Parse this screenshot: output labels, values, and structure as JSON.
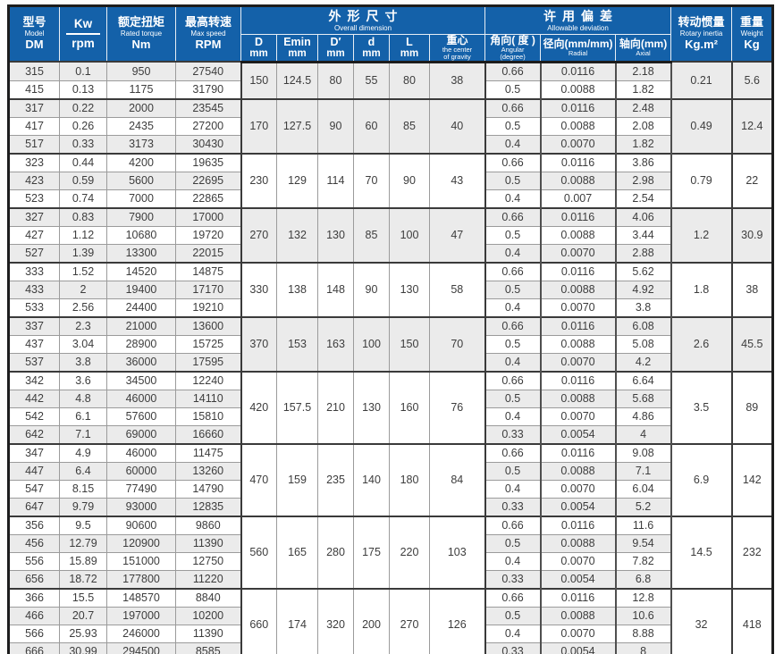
{
  "header": {
    "model": {
      "zh": "型号",
      "en": "Model",
      "code": "DM"
    },
    "power": {
      "top": "Kw",
      "bottom": "rpm"
    },
    "torque": {
      "zh": "额定扭矩",
      "en": "Rated torque",
      "unit": "Nm"
    },
    "speed": {
      "zh": "最高转速",
      "en": "Max speed",
      "unit": "RPM"
    },
    "dims_group": {
      "zh": "外形尺寸",
      "en": "Overall dimension"
    },
    "dims_cols": [
      {
        "label": "D",
        "unit": "mm"
      },
      {
        "label": "Emin",
        "unit": "mm"
      },
      {
        "label": "D′",
        "unit": "mm"
      },
      {
        "label": "d",
        "unit": "mm"
      },
      {
        "label": "L",
        "unit": "mm"
      },
      {
        "label": "重心",
        "sub1": "the center",
        "sub2": "of gravity"
      }
    ],
    "dev_group": {
      "zh": "许用偏差",
      "en": "Allowable deviation"
    },
    "dev_cols": [
      {
        "label": "角向( 度 )",
        "sub1": "Angular",
        "sub2": "(degree)"
      },
      {
        "label": "径向(mm/mm)",
        "sub1": "Radial"
      },
      {
        "label": "轴向(mm)",
        "sub1": "Axial"
      }
    ],
    "inertia": {
      "zh": "转动惯量",
      "en": "Rotary inertia",
      "unit": "Kg.m²"
    },
    "weight": {
      "zh": "重量",
      "en": "Weight",
      "unit": "Kg"
    }
  },
  "colors": {
    "header_blue": "#1461a9",
    "stripe_gray": "#ebebeb",
    "frame_dark": "#1c1c1c"
  },
  "groups": [
    {
      "dims": [
        "150",
        "124.5",
        "80",
        "55",
        "80",
        "38"
      ],
      "inertia": "0.21",
      "weight": "5.6",
      "rows": [
        {
          "model": "315",
          "kw": "0.1",
          "torque": "950",
          "speed": "27540",
          "angular": "0.66",
          "radial": "0.0116",
          "axial": "2.18"
        },
        {
          "model": "415",
          "kw": "0.13",
          "torque": "1175",
          "speed": "31790",
          "angular": "0.5",
          "radial": "0.0088",
          "axial": "1.82"
        }
      ]
    },
    {
      "dims": [
        "170",
        "127.5",
        "90",
        "60",
        "85",
        "40"
      ],
      "inertia": "0.49",
      "weight": "12.4",
      "rows": [
        {
          "model": "317",
          "kw": "0.22",
          "torque": "2000",
          "speed": "23545",
          "angular": "0.66",
          "radial": "0.0116",
          "axial": "2.48"
        },
        {
          "model": "417",
          "kw": "0.26",
          "torque": "2435",
          "speed": "27200",
          "angular": "0.5",
          "radial": "0.0088",
          "axial": "2.08"
        },
        {
          "model": "517",
          "kw": "0.33",
          "torque": "3173",
          "speed": "30430",
          "angular": "0.4",
          "radial": "0.0070",
          "axial": "1.82"
        }
      ]
    },
    {
      "dims": [
        "230",
        "129",
        "114",
        "70",
        "90",
        "43"
      ],
      "inertia": "0.79",
      "weight": "22",
      "rows": [
        {
          "model": "323",
          "kw": "0.44",
          "torque": "4200",
          "speed": "19635",
          "angular": "0.66",
          "radial": "0.0116",
          "axial": "3.86"
        },
        {
          "model": "423",
          "kw": "0.59",
          "torque": "5600",
          "speed": "22695",
          "angular": "0.5",
          "radial": "0.0088",
          "axial": "2.98"
        },
        {
          "model": "523",
          "kw": "0.74",
          "torque": "7000",
          "speed": "22865",
          "angular": "0.4",
          "radial": "0.007",
          "axial": "2.54"
        }
      ]
    },
    {
      "dims": [
        "270",
        "132",
        "130",
        "85",
        "100",
        "47"
      ],
      "inertia": "1.2",
      "weight": "30.9",
      "rows": [
        {
          "model": "327",
          "kw": "0.83",
          "torque": "7900",
          "speed": "17000",
          "angular": "0.66",
          "radial": "0.0116",
          "axial": "4.06"
        },
        {
          "model": "427",
          "kw": "1.12",
          "torque": "10680",
          "speed": "19720",
          "angular": "0.5",
          "radial": "0.0088",
          "axial": "3.44"
        },
        {
          "model": "527",
          "kw": "1.39",
          "torque": "13300",
          "speed": "22015",
          "angular": "0.4",
          "radial": "0.0070",
          "axial": "2.88"
        }
      ]
    },
    {
      "dims": [
        "330",
        "138",
        "148",
        "90",
        "130",
        "58"
      ],
      "inertia": "1.8",
      "weight": "38",
      "rows": [
        {
          "model": "333",
          "kw": "1.52",
          "torque": "14520",
          "speed": "14875",
          "angular": "0.66",
          "radial": "0.0116",
          "axial": "5.62"
        },
        {
          "model": "433",
          "kw": "2",
          "torque": "19400",
          "speed": "17170",
          "angular": "0.5",
          "radial": "0.0088",
          "axial": "4.92"
        },
        {
          "model": "533",
          "kw": "2.56",
          "torque": "24400",
          "speed": "19210",
          "angular": "0.4",
          "radial": "0.0070",
          "axial": "3.8"
        }
      ]
    },
    {
      "dims": [
        "370",
        "153",
        "163",
        "100",
        "150",
        "70"
      ],
      "inertia": "2.6",
      "weight": "45.5",
      "rows": [
        {
          "model": "337",
          "kw": "2.3",
          "torque": "21000",
          "speed": "13600",
          "angular": "0.66",
          "radial": "0.0116",
          "axial": "6.08"
        },
        {
          "model": "437",
          "kw": "3.04",
          "torque": "28900",
          "speed": "15725",
          "angular": "0.5",
          "radial": "0.0088",
          "axial": "5.08"
        },
        {
          "model": "537",
          "kw": "3.8",
          "torque": "36000",
          "speed": "17595",
          "angular": "0.4",
          "radial": "0.0070",
          "axial": "4.2"
        }
      ]
    },
    {
      "dims": [
        "420",
        "157.5",
        "210",
        "130",
        "160",
        "76"
      ],
      "inertia": "3.5",
      "weight": "89",
      "rows": [
        {
          "model": "342",
          "kw": "3.6",
          "torque": "34500",
          "speed": "12240",
          "angular": "0.66",
          "radial": "0.0116",
          "axial": "6.64"
        },
        {
          "model": "442",
          "kw": "4.8",
          "torque": "46000",
          "speed": "14110",
          "angular": "0.5",
          "radial": "0.0088",
          "axial": "5.68"
        },
        {
          "model": "542",
          "kw": "6.1",
          "torque": "57600",
          "speed": "15810",
          "angular": "0.4",
          "radial": "0.0070",
          "axial": "4.86"
        },
        {
          "model": "642",
          "kw": "7.1",
          "torque": "69000",
          "speed": "16660",
          "angular": "0.33",
          "radial": "0.0054",
          "axial": "4"
        }
      ]
    },
    {
      "dims": [
        "470",
        "159",
        "235",
        "140",
        "180",
        "84"
      ],
      "inertia": "6.9",
      "weight": "142",
      "rows": [
        {
          "model": "347",
          "kw": "4.9",
          "torque": "46000",
          "speed": "11475",
          "angular": "0.66",
          "radial": "0.0116",
          "axial": "9.08"
        },
        {
          "model": "447",
          "kw": "6.4",
          "torque": "60000",
          "speed": "13260",
          "angular": "0.5",
          "radial": "0.0088",
          "axial": "7.1"
        },
        {
          "model": "547",
          "kw": "8.15",
          "torque": "77490",
          "speed": "14790",
          "angular": "0.4",
          "radial": "0.0070",
          "axial": "6.04"
        },
        {
          "model": "647",
          "kw": "9.79",
          "torque": "93000",
          "speed": "12835",
          "angular": "0.33",
          "radial": "0.0054",
          "axial": "5.2"
        }
      ]
    },
    {
      "dims": [
        "560",
        "165",
        "280",
        "175",
        "220",
        "103"
      ],
      "inertia": "14.5",
      "weight": "232",
      "rows": [
        {
          "model": "356",
          "kw": "9.5",
          "torque": "90600",
          "speed": "9860",
          "angular": "0.66",
          "radial": "0.0116",
          "axial": "11.6"
        },
        {
          "model": "456",
          "kw": "12.79",
          "torque": "120900",
          "speed": "11390",
          "angular": "0.5",
          "radial": "0.0088",
          "axial": "9.54"
        },
        {
          "model": "556",
          "kw": "15.89",
          "torque": "151000",
          "speed": "12750",
          "angular": "0.4",
          "radial": "0.0070",
          "axial": "7.82"
        },
        {
          "model": "656",
          "kw": "18.72",
          "torque": "177800",
          "speed": "11220",
          "angular": "0.33",
          "radial": "0.0054",
          "axial": "6.8"
        }
      ]
    },
    {
      "dims": [
        "660",
        "174",
        "320",
        "200",
        "270",
        "126"
      ],
      "inertia": "32",
      "weight": "418",
      "rows": [
        {
          "model": "366",
          "kw": "15.5",
          "torque": "148570",
          "speed": "8840",
          "angular": "0.66",
          "radial": "0.0116",
          "axial": "12.8"
        },
        {
          "model": "466",
          "kw": "20.7",
          "torque": "197000",
          "speed": "10200",
          "angular": "0.5",
          "radial": "0.0088",
          "axial": "10.6"
        },
        {
          "model": "566",
          "kw": "25.93",
          "torque": "246000",
          "speed": "11390",
          "angular": "0.4",
          "radial": "0.0070",
          "axial": "8.88"
        },
        {
          "model": "666",
          "kw": "30.99",
          "torque": "294500",
          "speed": "8585",
          "angular": "0.33",
          "radial": "0.0054",
          "axial": "8"
        }
      ]
    }
  ]
}
